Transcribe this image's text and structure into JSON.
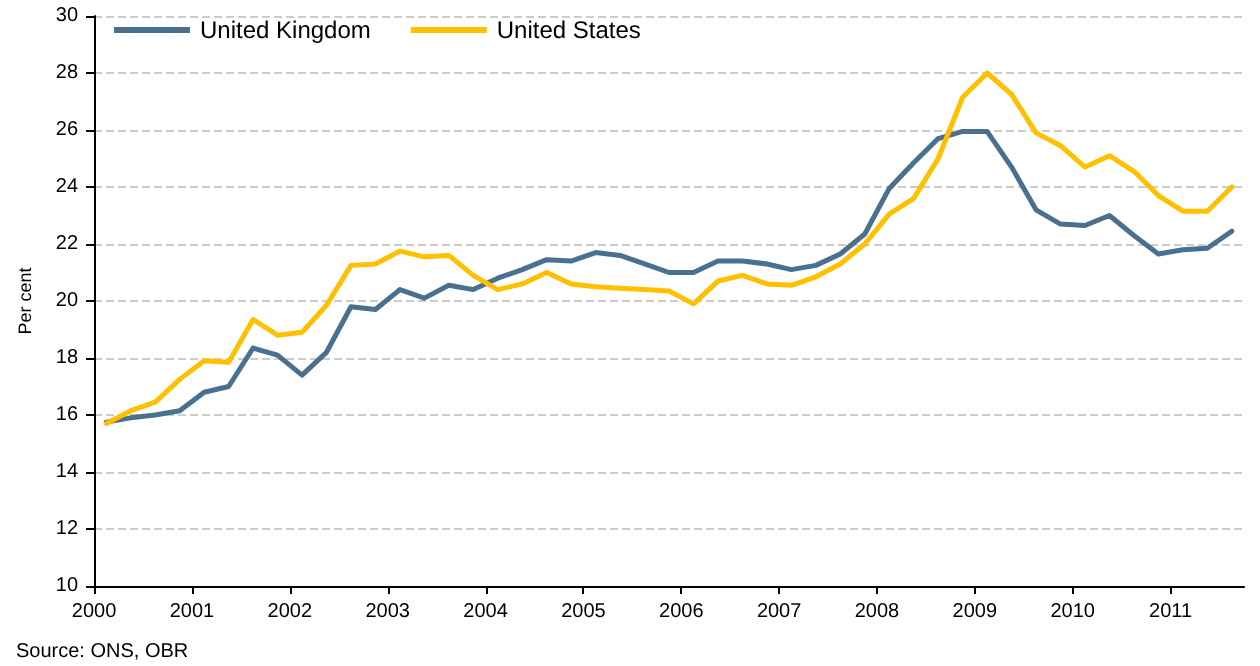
{
  "chart_data": {
    "type": "line",
    "ylabel": "Per cent",
    "annotations": [
      "Source: ONS, OBR"
    ],
    "x": [
      2000.125,
      2000.375,
      2000.625,
      2000.875,
      2001.125,
      2001.375,
      2001.625,
      2001.875,
      2002.125,
      2002.375,
      2002.625,
      2002.875,
      2003.125,
      2003.375,
      2003.625,
      2003.875,
      2004.125,
      2004.375,
      2004.625,
      2004.875,
      2005.125,
      2005.375,
      2005.625,
      2005.875,
      2006.125,
      2006.375,
      2006.625,
      2006.875,
      2007.125,
      2007.375,
      2007.625,
      2007.875,
      2008.125,
      2008.375,
      2008.625,
      2008.875,
      2009.125,
      2009.375,
      2009.625,
      2009.875,
      2010.125,
      2010.375,
      2010.625,
      2010.875,
      2011.125,
      2011.375,
      2011.625
    ],
    "series": [
      {
        "name": "United Kingdom",
        "color": "#4a7090",
        "values": [
          15.75,
          15.9,
          16.0,
          16.15,
          16.8,
          17.0,
          18.35,
          18.1,
          17.4,
          18.2,
          19.8,
          19.7,
          20.4,
          20.1,
          20.55,
          20.4,
          20.8,
          21.1,
          21.45,
          21.4,
          21.7,
          21.6,
          21.3,
          21.0,
          21.0,
          21.4,
          21.4,
          21.3,
          21.1,
          21.25,
          21.65,
          22.35,
          23.95,
          24.85,
          25.7,
          25.95,
          25.95,
          24.7,
          23.2,
          22.7,
          22.65,
          23.0,
          22.3,
          21.65,
          21.8,
          21.85,
          22.45
        ]
      },
      {
        "name": "United States",
        "color": "#ffc000",
        "values": [
          15.7,
          16.15,
          16.45,
          17.25,
          17.9,
          17.85,
          19.35,
          18.8,
          18.9,
          19.85,
          21.25,
          21.3,
          21.75,
          21.55,
          21.6,
          20.9,
          20.4,
          20.6,
          21.0,
          20.6,
          20.5,
          20.45,
          20.4,
          20.35,
          19.9,
          20.7,
          20.9,
          20.6,
          20.55,
          20.85,
          21.3,
          22.0,
          23.05,
          23.6,
          25.0,
          27.15,
          28.0,
          27.25,
          25.9,
          25.45,
          24.7,
          25.1,
          24.55,
          23.7,
          23.15,
          23.15,
          24.0
        ]
      }
    ],
    "xlim": [
      2000,
      2011.75
    ],
    "xticks": [
      2000,
      2001,
      2002,
      2003,
      2004,
      2005,
      2006,
      2007,
      2008,
      2009,
      2010,
      2011
    ],
    "ylim": [
      10,
      30
    ],
    "yticks": [
      10,
      12,
      14,
      16,
      18,
      20,
      22,
      24,
      26,
      28,
      30
    ],
    "grid": "y",
    "legend": "top left",
    "marker": "none",
    "line_style": "solid"
  }
}
